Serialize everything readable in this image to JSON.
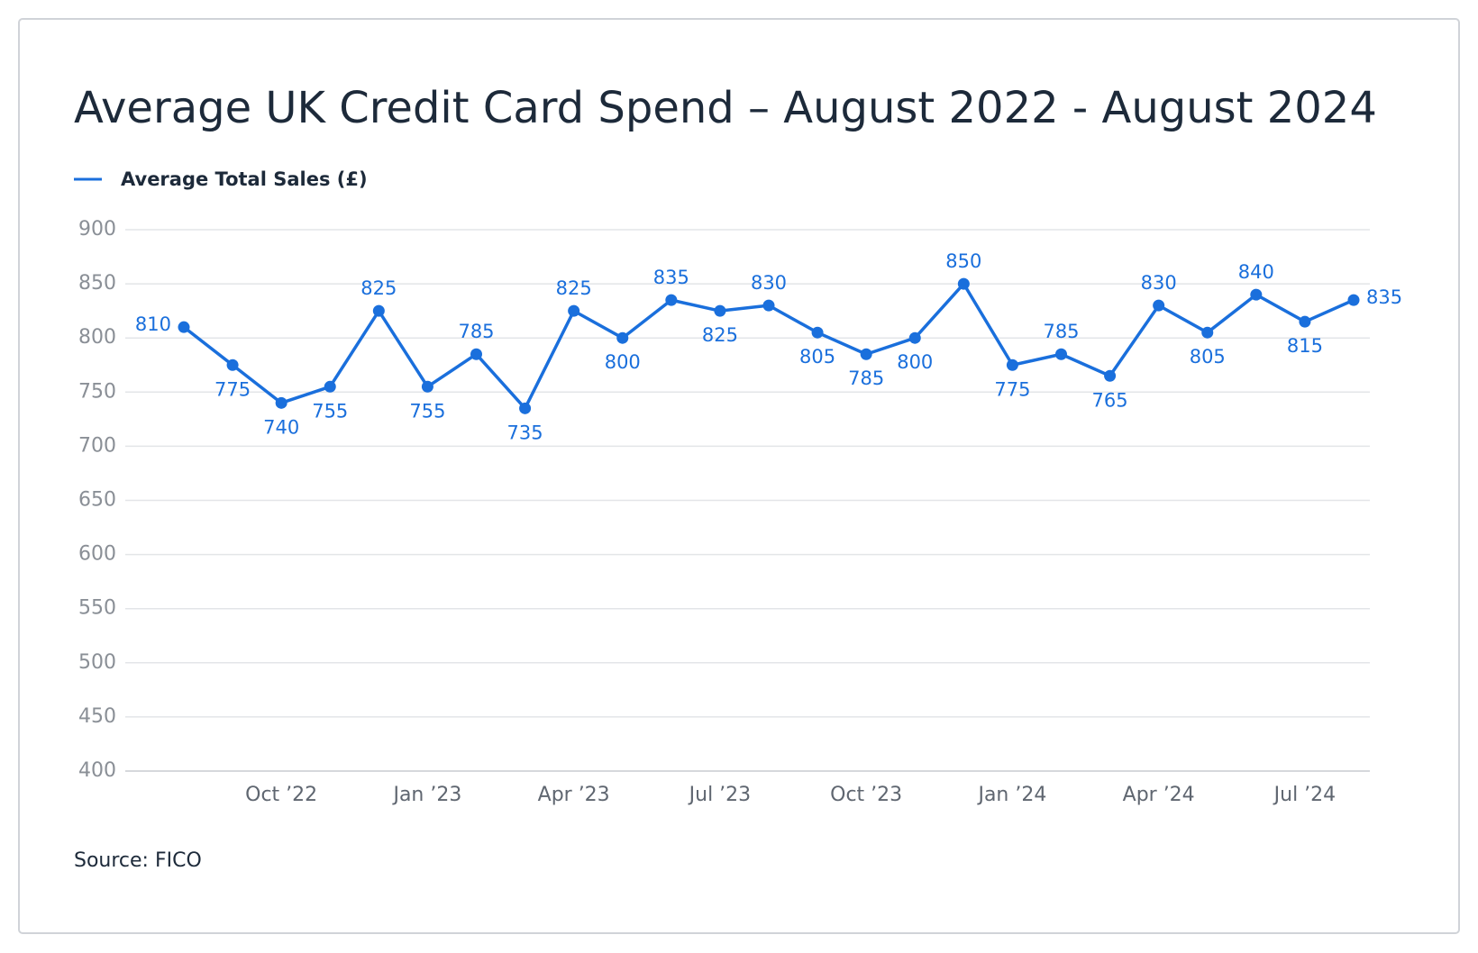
{
  "chart_data": {
    "type": "line",
    "title": "Average UK Credit Card Spend – August 2022 - August 2024",
    "source": "Source: FICO",
    "categories": [
      null,
      null,
      "Oct ’22",
      null,
      null,
      "Jan ’23",
      null,
      null,
      "Apr ’23",
      null,
      null,
      "Jul ’23",
      null,
      null,
      "Oct ’23",
      null,
      null,
      "Jan ’24",
      null,
      null,
      "Apr ’24",
      null,
      null,
      "Jul ’24",
      null
    ],
    "series": [
      {
        "name": "Average Total Sales (£)",
        "color": "#1a6fdc",
        "values": [
          810,
          775,
          740,
          755,
          825,
          755,
          785,
          735,
          825,
          800,
          835,
          825,
          830,
          805,
          785,
          800,
          850,
          775,
          785,
          765,
          830,
          805,
          840,
          815,
          835
        ]
      }
    ],
    "ylim": [
      400,
      900
    ],
    "yticks": [
      400,
      450,
      500,
      550,
      600,
      650,
      700,
      750,
      800,
      850,
      900
    ],
    "grid": true,
    "legend": "top-left"
  }
}
